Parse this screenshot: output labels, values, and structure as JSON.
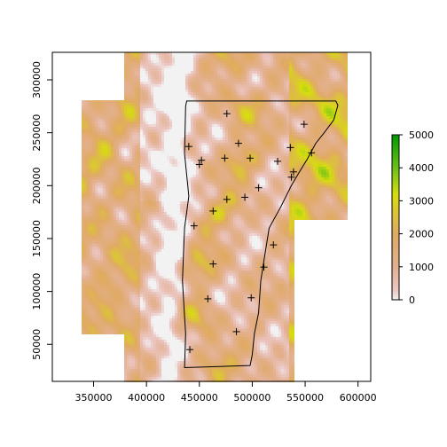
{
  "chart_data": {
    "type": "heatmap",
    "title": "",
    "xlabel": "",
    "ylabel": "",
    "xlim": [
      311000,
      612000
    ],
    "ylim": [
      15000,
      326000
    ],
    "xticks": [
      350000,
      400000,
      450000,
      500000,
      550000,
      600000
    ],
    "xtick_labels": [
      "350000",
      "400000",
      "450000",
      "500000",
      "550000",
      "600000"
    ],
    "yticks": [
      50000,
      100000,
      150000,
      200000,
      250000,
      300000
    ],
    "ytick_labels": [
      "50000",
      "100000",
      "150000",
      "200000",
      "250000",
      "300000"
    ],
    "legend": {
      "placement": "right",
      "range": [
        0,
        5000
      ],
      "ticks": [
        0,
        1000,
        2000,
        3000,
        4000,
        5000
      ],
      "tick_labels": [
        "0",
        "1000",
        "2000",
        "3000",
        "4000",
        "5000"
      ],
      "colors": [
        {
          "value": 0,
          "color": "#f2f2f2"
        },
        {
          "value": 300,
          "color": "#ebc7c4"
        },
        {
          "value": 1000,
          "color": "#e3b08e"
        },
        {
          "value": 2000,
          "color": "#e0aa64"
        },
        {
          "value": 2600,
          "color": "#dcc23a"
        },
        {
          "value": 3200,
          "color": "#d7dc0f"
        },
        {
          "value": 4000,
          "color": "#6cc21a"
        },
        {
          "value": 5000,
          "color": "#009a00"
        }
      ]
    },
    "raster_extent": [
      [
        338000,
        60000,
        383000,
        280000
      ],
      [
        378000,
        15000,
        540000,
        326000
      ],
      [
        383000,
        300000,
        590000,
        326000
      ],
      [
        383000,
        255000,
        590000,
        300000
      ],
      [
        540000,
        168000,
        590000,
        300000
      ]
    ],
    "boundary": [
      [
        436000,
        28000
      ],
      [
        437000,
        60000
      ],
      [
        434000,
        110000
      ],
      [
        436000,
        160000
      ],
      [
        440000,
        190000
      ],
      [
        436000,
        230000
      ],
      [
        437000,
        275000
      ],
      [
        438000,
        280000
      ],
      [
        579000,
        280000
      ],
      [
        581000,
        276000
      ],
      [
        577000,
        262000
      ],
      [
        568000,
        250000
      ],
      [
        560000,
        240000
      ],
      [
        552000,
        225000
      ],
      [
        544000,
        212000
      ],
      [
        537000,
        200000
      ],
      [
        527000,
        180000
      ],
      [
        516000,
        160000
      ],
      [
        512000,
        135000
      ],
      [
        508000,
        110000
      ],
      [
        506000,
        80000
      ],
      [
        502000,
        60000
      ],
      [
        500000,
        40000
      ],
      [
        498000,
        30000
      ]
    ],
    "points": [
      [
        476000,
        268000
      ],
      [
        440000,
        237000
      ],
      [
        487000,
        240000
      ],
      [
        549000,
        258000
      ],
      [
        536000,
        236000
      ],
      [
        452000,
        224000
      ],
      [
        450000,
        220000
      ],
      [
        474000,
        226000
      ],
      [
        498000,
        226000
      ],
      [
        524000,
        223000
      ],
      [
        556000,
        231000
      ],
      [
        539000,
        213000
      ],
      [
        537000,
        208000
      ],
      [
        506000,
        198000
      ],
      [
        493000,
        189000
      ],
      [
        476000,
        187000
      ],
      [
        463000,
        176000
      ],
      [
        445000,
        162000
      ],
      [
        520000,
        144000
      ],
      [
        463000,
        126000
      ],
      [
        511000,
        123000
      ],
      [
        458000,
        93000
      ],
      [
        499000,
        94000
      ],
      [
        485000,
        62000
      ],
      [
        441000,
        45000
      ]
    ]
  }
}
